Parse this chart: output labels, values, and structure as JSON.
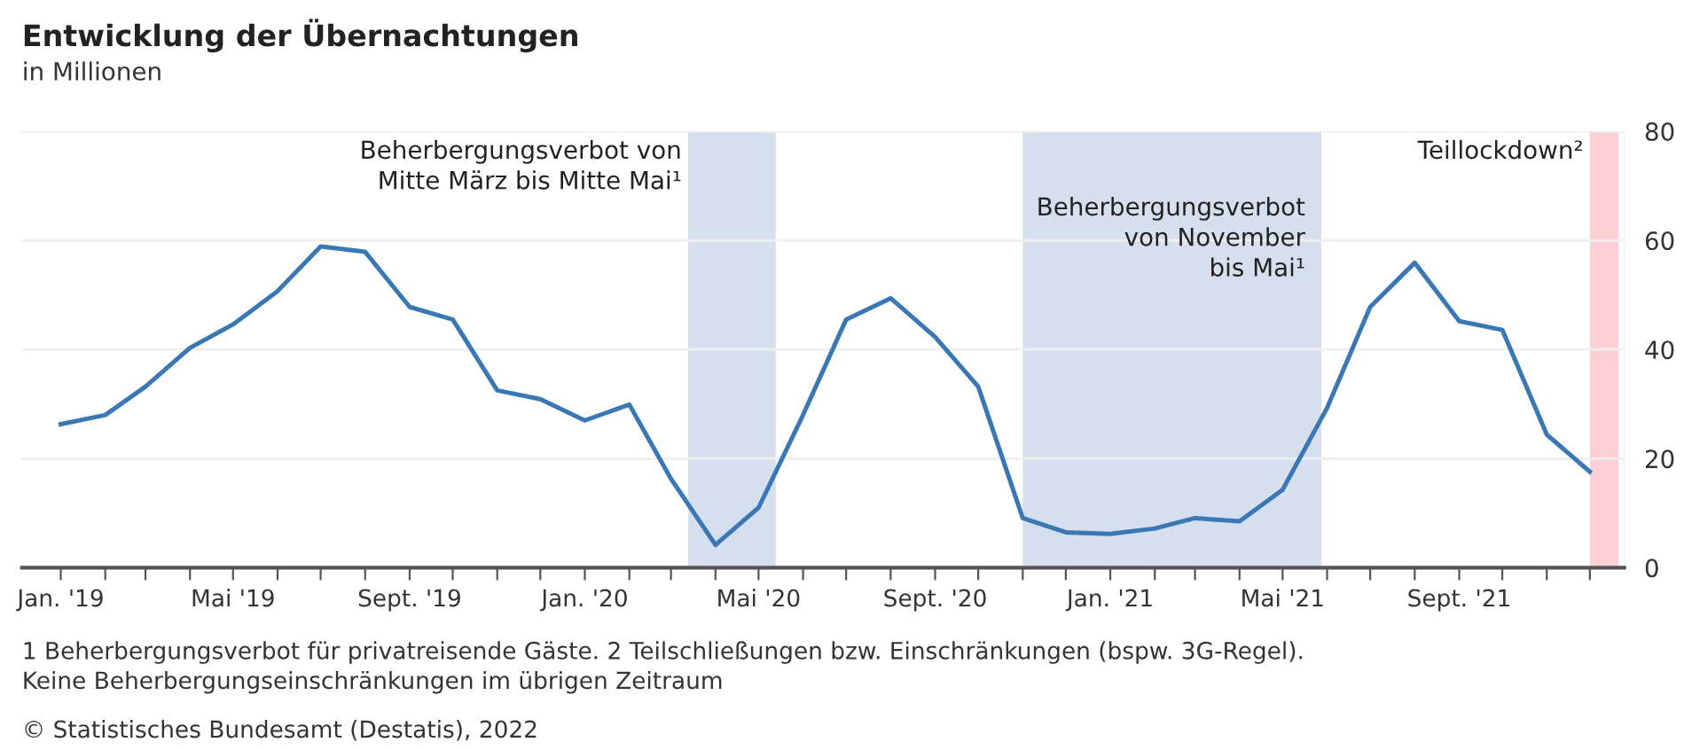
{
  "chart_data": {
    "type": "line",
    "title": "Entwicklung der Übernachtungen",
    "subtitle": "in Millionen",
    "x": [
      "2019-01",
      "2019-02",
      "2019-03",
      "2019-04",
      "2019-05",
      "2019-06",
      "2019-07",
      "2019-08",
      "2019-09",
      "2019-10",
      "2019-11",
      "2019-12",
      "2020-01",
      "2020-02",
      "2020-03",
      "2020-04",
      "2020-05",
      "2020-06",
      "2020-07",
      "2020-08",
      "2020-09",
      "2020-10",
      "2020-11",
      "2020-12",
      "2021-01",
      "2021-02",
      "2021-03",
      "2021-04",
      "2021-05",
      "2021-06",
      "2021-07",
      "2021-08",
      "2021-09",
      "2021-10",
      "2021-11",
      "2021-12"
    ],
    "series": [
      {
        "color": "#3a78b5",
        "values": [
          26.3,
          28,
          33.2,
          40.3,
          44.6,
          50.7,
          58.9,
          57.9,
          47.8,
          45.5,
          32.5,
          30.9,
          27,
          29.9,
          16.3,
          4.2,
          11,
          28,
          45.5,
          49.4,
          42.3,
          33.2,
          9.1,
          6.5,
          6.2,
          7.2,
          9.1,
          8.5,
          14.3,
          29.3,
          47.8,
          55.9,
          45.2,
          43.6,
          24.4,
          17.6
        ]
      }
    ],
    "xlim": [
      "2018-12-05",
      "2021-12-25"
    ],
    "xticks": [
      {
        "value": "2019-01",
        "label": "Jan. '19"
      },
      {
        "value": "2019-02",
        "label": null
      },
      {
        "value": "2019-03",
        "label": null
      },
      {
        "value": "2019-04",
        "label": null
      },
      {
        "value": "2019-05",
        "label": "Mai '19"
      },
      {
        "value": "2019-06",
        "label": null
      },
      {
        "value": "2019-07",
        "label": null
      },
      {
        "value": "2019-08",
        "label": null
      },
      {
        "value": "2019-09",
        "label": "Sept. '19"
      },
      {
        "value": "2019-10",
        "label": null
      },
      {
        "value": "2019-11",
        "label": null
      },
      {
        "value": "2019-12",
        "label": null
      },
      {
        "value": "2020-01",
        "label": "Jan. '20"
      },
      {
        "value": "2020-02",
        "label": null
      },
      {
        "value": "2020-03",
        "label": null
      },
      {
        "value": "2020-04",
        "label": null
      },
      {
        "value": "2020-05",
        "label": "Mai '20"
      },
      {
        "value": "2020-06",
        "label": null
      },
      {
        "value": "2020-07",
        "label": null
      },
      {
        "value": "2020-08",
        "label": null
      },
      {
        "value": "2020-09",
        "label": "Sept. '20"
      },
      {
        "value": "2020-10",
        "label": null
      },
      {
        "value": "2020-11",
        "label": null
      },
      {
        "value": "2020-12",
        "label": null
      },
      {
        "value": "2021-01",
        "label": "Jan. '21"
      },
      {
        "value": "2021-02",
        "label": null
      },
      {
        "value": "2021-03",
        "label": null
      },
      {
        "value": "2021-04",
        "label": null
      },
      {
        "value": "2021-05",
        "label": "Mai '21"
      },
      {
        "value": "2021-06",
        "label": null
      },
      {
        "value": "2021-07",
        "label": null
      },
      {
        "value": "2021-08",
        "label": null
      },
      {
        "value": "2021-09",
        "label": "Sept. '21"
      },
      {
        "value": "2021-10",
        "label": null
      },
      {
        "value": "2021-11",
        "label": null
      },
      {
        "value": "2021-12",
        "label": null
      }
    ],
    "ylim": [
      0,
      80
    ],
    "yticks": [
      0,
      20,
      40,
      60,
      80
    ],
    "grid": "y",
    "bands": [
      {
        "axis": "x",
        "from": "2020-03-13",
        "to": "2020-05-13",
        "label": "Beherbergungsverbot von\nMitte März bis Mitte Mai¹",
        "color": "#d6dfee"
      },
      {
        "axis": "x",
        "from": "2020-11-01",
        "to": "2021-05-28",
        "label": "Beherbergungsverbot\nvon November\nbis Mai¹",
        "color": "#d6dfee"
      },
      {
        "axis": "x",
        "from": "2021-12-01",
        "to": "2021-12-21",
        "label": "Teillockdown²",
        "color": "#fdd0d5"
      }
    ],
    "annotations": [
      "1 Beherbergungsverbot für privatreisende Gäste. 2 Teilschließungen bzw. Einschränkungen (bspw. 3G-Regel).\nKeine Beherbergungseinschränkungen im übrigen Zeitraum",
      "© Statistisches Bundesamt (Destatis), 2022"
    ]
  }
}
